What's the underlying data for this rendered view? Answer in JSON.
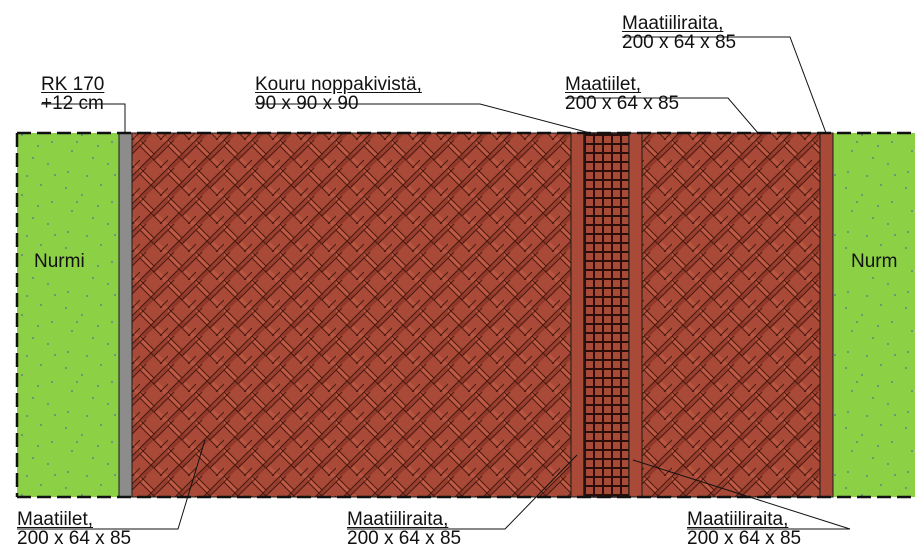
{
  "labels": {
    "rk": {
      "line1": "RK 170",
      "line2": "+12 cm"
    },
    "kouru": {
      "line1": "Kouru noppakivistä,",
      "line2": "90 x 90 x 90"
    },
    "maatiilet_top": {
      "line1": "Maatiilet,",
      "line2": "200 x 64 x 85"
    },
    "maatiiliraita_top": {
      "line1": "Maatiiliraita,",
      "line2": "200 x 64 x 85"
    },
    "maatiilet_bottom": {
      "line1": "Maatiilet,",
      "line2": "200 x 64 x 85"
    },
    "maatiiliraita_bottom_mid": {
      "line1": "Maatiiliraita,",
      "line2": "200 x 64 x 85"
    },
    "maatiiliraita_bottom_right": {
      "line1": "Maatiiliraita,",
      "line2": "200 x 64 x 85"
    },
    "nurmi_left": "Nurmi",
    "nurmi_right": "Nurm"
  },
  "colors": {
    "grass": "#8cd045",
    "grass_dots": "#5a6a9a",
    "brick": "#b4513c",
    "brick_dark": "#6b2a1f",
    "curb": "#8c8c8c",
    "outline": "#1a1a1a"
  }
}
